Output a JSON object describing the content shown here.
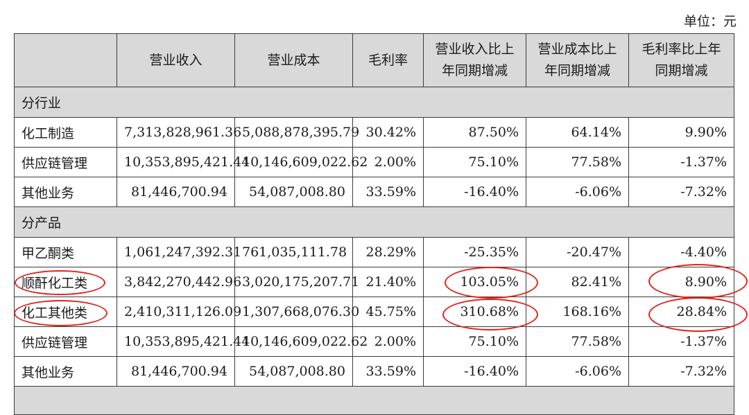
{
  "unit_label": "单位：元",
  "header": {
    "col0": "",
    "col1": "营业收入",
    "col2": "营业成本",
    "col3": "毛利率",
    "col4_line1": "营业收入比上",
    "col4_line2": "年同期增减",
    "col5_line1": "营业成本比上",
    "col5_line2": "年同期增减",
    "col6_line1": "毛利率比上年",
    "col6_line2": "同期增减"
  },
  "sections": [
    {
      "title": "分行业",
      "rows": [
        {
          "name": "化工制造",
          "revenue": "7,313,828,961.36",
          "cost": "5,088,878,395.79",
          "margin": "30.42%",
          "rev_change": "87.50%",
          "cost_change": "64.14%",
          "margin_change": "9.90%"
        },
        {
          "name": "供应链管理",
          "revenue": "10,353,895,421.44",
          "cost": "10,146,609,022.62",
          "margin": "2.00%",
          "rev_change": "75.10%",
          "cost_change": "77.58%",
          "margin_change": "-1.37%"
        },
        {
          "name": "其他业务",
          "revenue": "81,446,700.94",
          "cost": "54,087,008.80",
          "margin": "33.59%",
          "rev_change": "-16.40%",
          "cost_change": "-6.06%",
          "margin_change": "-7.32%"
        }
      ]
    },
    {
      "title": "分产品",
      "rows": [
        {
          "name": "甲乙酮类",
          "revenue": "1,061,247,392.31",
          "cost": "761,035,111.78",
          "margin": "28.29%",
          "rev_change": "-25.35%",
          "cost_change": "-20.47%",
          "margin_change": "-4.40%"
        },
        {
          "name": "顺酐化工类",
          "revenue": "3,842,270,442.96",
          "cost": "3,020,175,207.71",
          "margin": "21.40%",
          "rev_change": "103.05%",
          "cost_change": "82.41%",
          "margin_change": "8.90%"
        },
        {
          "name": "化工其他类",
          "revenue": "2,410,311,126.09",
          "cost": "1,307,668,076.30",
          "margin": "45.75%",
          "rev_change": "310.68%",
          "cost_change": "168.16%",
          "margin_change": "28.84%"
        },
        {
          "name": "供应链管理",
          "revenue": "10,353,895,421.44",
          "cost": "10,146,609,022.62",
          "margin": "2.00%",
          "rev_change": "75.10%",
          "cost_change": "77.58%",
          "margin_change": "-1.37%"
        },
        {
          "name": "其他业务",
          "revenue": "81,446,700.94",
          "cost": "54,087,008.80",
          "margin": "33.59%",
          "rev_change": "-16.40%",
          "cost_change": "-6.06%",
          "margin_change": "-7.32%"
        }
      ]
    }
  ],
  "annotation_color": "#e0231c"
}
